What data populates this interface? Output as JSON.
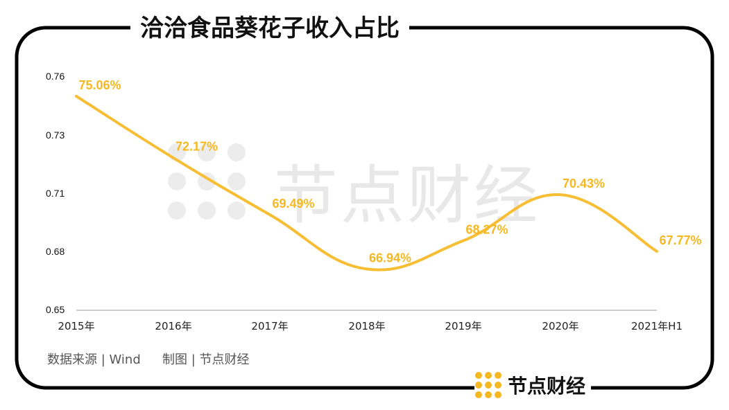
{
  "title": "洽洽食品葵花子收入占比",
  "footer": {
    "source": "数据来源 | Wind",
    "credit": "制图 | 节点财经"
  },
  "brand": {
    "name": "节点财经"
  },
  "watermark": "节点财经",
  "colors": {
    "line": "#f7bd33",
    "label": "#f5b820",
    "frame": "#000000",
    "axis": "#999999"
  },
  "chart_data": {
    "type": "line",
    "title": "洽洽食品葵花子收入占比",
    "categories": [
      "2015年",
      "2016年",
      "2017年",
      "2018年",
      "2019年",
      "2020年",
      "2021年H1"
    ],
    "series": [
      {
        "name": "葵花子收入占比",
        "values": [
          0.7506,
          0.7217,
          0.6949,
          0.6694,
          0.6827,
          0.7043,
          0.6777
        ]
      }
    ],
    "data_labels": [
      "75.06%",
      "72.17%",
      "69.49%",
      "66.94%",
      "68.27%",
      "70.43%",
      "67.77%"
    ],
    "yticks": [
      "0.76",
      "0.73",
      "0.71",
      "0.68",
      "0.65"
    ],
    "ylim": [
      0.65,
      0.76
    ],
    "xlabel": "",
    "ylabel": "",
    "grid": false,
    "smooth": true
  }
}
